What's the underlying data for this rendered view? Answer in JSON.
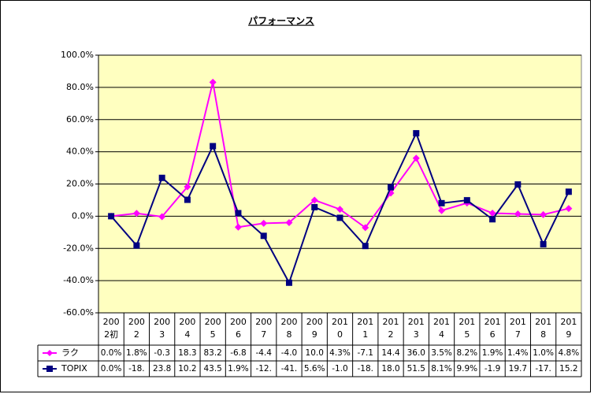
{
  "chart_data": {
    "type": "line",
    "title": "パフォーマンス",
    "categories": [
      "2002初",
      "2002",
      "2003",
      "2004",
      "2005",
      "2006",
      "2007",
      "2008",
      "2009",
      "2010",
      "2011",
      "2012",
      "2013",
      "2014",
      "2015",
      "2016",
      "2017",
      "2018",
      "2019"
    ],
    "series": [
      {
        "name": "ラク",
        "color": "#ff00ff",
        "marker": "diamond",
        "values": [
          0.0,
          1.8,
          -0.3,
          18.3,
          83.2,
          -6.8,
          -4.4,
          -4.0,
          10.0,
          4.3,
          -7.1,
          14.4,
          36.0,
          3.5,
          8.2,
          1.9,
          1.4,
          1.0,
          4.8
        ],
        "value_labels": [
          "0.0%",
          "1.8%",
          "-0.3",
          "18.3",
          "83.2",
          "-6.8",
          "-4.4",
          "-4.0",
          "10.0",
          "4.3%",
          "-7.1",
          "14.4",
          "36.0",
          "3.5%",
          "8.2%",
          "1.9%",
          "1.4%",
          "1.0%",
          "4.8%"
        ]
      },
      {
        "name": "TOPIX",
        "color": "#000080",
        "marker": "square",
        "values": [
          0.0,
          -18.2,
          23.8,
          10.2,
          43.5,
          1.9,
          -12.2,
          -41.3,
          5.6,
          -1.0,
          -18.5,
          18.0,
          51.5,
          8.1,
          9.9,
          -1.9,
          19.7,
          -17.4,
          15.2
        ],
        "value_labels": [
          "0.0%",
          "-18.",
          "23.8",
          "10.2",
          "43.5",
          "1.9%",
          "-12.",
          "-41.",
          "5.6%",
          "-1.0",
          "-18.",
          "18.0",
          "51.5",
          "8.1%",
          "9.9%",
          "-1.9",
          "19.7",
          "-17.",
          "15.2"
        ]
      }
    ],
    "ylim": [
      -60,
      100
    ],
    "yticks": [
      {
        "value": -60,
        "label": "-60.0%"
      },
      {
        "value": -40,
        "label": "-40.0%"
      },
      {
        "value": -20,
        "label": "-20.0%"
      },
      {
        "value": 0,
        "label": "0.0%"
      },
      {
        "value": 20,
        "label": "20.0%"
      },
      {
        "value": 40,
        "label": "40.0%"
      },
      {
        "value": 60,
        "label": "60.0%"
      },
      {
        "value": 80,
        "label": "80.0%"
      },
      {
        "value": 100,
        "label": "100.0%"
      }
    ],
    "grid": true,
    "plot_background": "#ffffc0"
  }
}
